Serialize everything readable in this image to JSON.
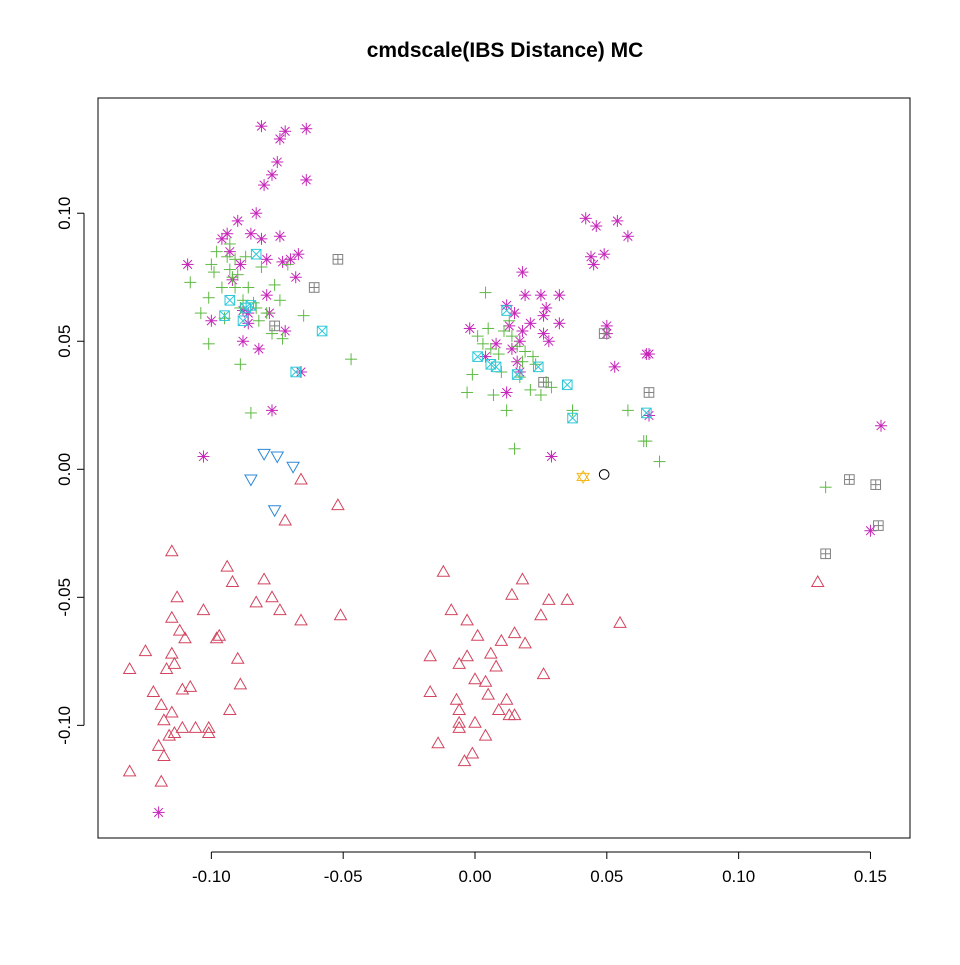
{
  "chart_data": {
    "type": "scatter",
    "title": "cmdscale(IBS Distance) MC",
    "xlabel": "",
    "ylabel": "",
    "xlim": [
      -0.143,
      0.165
    ],
    "ylim": [
      -0.144,
      0.145
    ],
    "xticks": [
      -0.1,
      -0.05,
      0.0,
      0.05,
      0.1,
      0.15
    ],
    "xtick_labels": [
      "-0.10",
      "-0.05",
      "0.00",
      "0.05",
      "0.10",
      "0.15"
    ],
    "yticks": [
      -0.1,
      -0.05,
      0.0,
      0.05,
      0.1
    ],
    "ytick_labels": [
      "-0.10",
      "-0.05",
      "0.00",
      "0.05",
      "0.10"
    ],
    "grid": false,
    "series": [
      {
        "marker": "triangle-up",
        "color": "#d2445f",
        "points": [
          [
            -0.131,
            -0.078
          ],
          [
            -0.131,
            -0.118
          ],
          [
            -0.125,
            -0.071
          ],
          [
            -0.122,
            -0.087
          ],
          [
            -0.12,
            -0.108
          ],
          [
            -0.119,
            -0.122
          ],
          [
            -0.119,
            -0.092
          ],
          [
            -0.118,
            -0.098
          ],
          [
            -0.118,
            -0.112
          ],
          [
            -0.117,
            -0.078
          ],
          [
            -0.116,
            -0.104
          ],
          [
            -0.115,
            -0.058
          ],
          [
            -0.115,
            -0.072
          ],
          [
            -0.115,
            -0.095
          ],
          [
            -0.115,
            -0.032
          ],
          [
            -0.114,
            -0.103
          ],
          [
            -0.114,
            -0.076
          ],
          [
            -0.113,
            -0.05
          ],
          [
            -0.112,
            -0.063
          ],
          [
            -0.111,
            -0.101
          ],
          [
            -0.111,
            -0.086
          ],
          [
            -0.11,
            -0.066
          ],
          [
            -0.108,
            -0.085
          ],
          [
            -0.106,
            -0.101
          ],
          [
            -0.103,
            -0.055
          ],
          [
            -0.101,
            -0.103
          ],
          [
            -0.101,
            -0.101
          ],
          [
            -0.098,
            -0.066
          ],
          [
            -0.097,
            -0.065
          ],
          [
            -0.094,
            -0.038
          ],
          [
            -0.093,
            -0.094
          ],
          [
            -0.092,
            -0.044
          ],
          [
            -0.09,
            -0.074
          ],
          [
            -0.089,
            -0.084
          ],
          [
            -0.083,
            -0.052
          ],
          [
            -0.08,
            -0.043
          ],
          [
            -0.077,
            -0.05
          ],
          [
            -0.074,
            -0.055
          ],
          [
            -0.072,
            -0.02
          ],
          [
            -0.066,
            -0.059
          ],
          [
            -0.066,
            -0.004
          ],
          [
            -0.052,
            -0.014
          ],
          [
            -0.051,
            -0.057
          ],
          [
            -0.017,
            -0.073
          ],
          [
            -0.017,
            -0.087
          ],
          [
            -0.014,
            -0.107
          ],
          [
            -0.012,
            -0.04
          ],
          [
            -0.009,
            -0.055
          ],
          [
            -0.007,
            -0.09
          ],
          [
            -0.006,
            -0.094
          ],
          [
            -0.006,
            -0.101
          ],
          [
            -0.006,
            -0.099
          ],
          [
            -0.006,
            -0.076
          ],
          [
            -0.004,
            -0.114
          ],
          [
            -0.003,
            -0.073
          ],
          [
            -0.003,
            -0.059
          ],
          [
            -0.001,
            -0.111
          ],
          [
            0.0,
            -0.099
          ],
          [
            0.0,
            -0.082
          ],
          [
            0.001,
            -0.065
          ],
          [
            0.004,
            -0.083
          ],
          [
            0.004,
            -0.104
          ],
          [
            0.005,
            -0.088
          ],
          [
            0.006,
            -0.072
          ],
          [
            0.008,
            -0.077
          ],
          [
            0.009,
            -0.094
          ],
          [
            0.01,
            -0.067
          ],
          [
            0.012,
            -0.09
          ],
          [
            0.013,
            -0.096
          ],
          [
            0.014,
            -0.049
          ],
          [
            0.015,
            -0.096
          ],
          [
            0.015,
            -0.064
          ],
          [
            0.018,
            -0.043
          ],
          [
            0.019,
            -0.068
          ],
          [
            0.025,
            -0.057
          ],
          [
            0.026,
            -0.08
          ],
          [
            0.028,
            -0.051
          ],
          [
            0.035,
            -0.051
          ],
          [
            0.055,
            -0.06
          ],
          [
            0.13,
            -0.044
          ]
        ]
      },
      {
        "marker": "asterisk",
        "color": "#c525b8",
        "points": [
          [
            -0.12,
            -0.134
          ],
          [
            -0.109,
            0.08
          ],
          [
            -0.103,
            0.005
          ],
          [
            -0.1,
            0.058
          ],
          [
            -0.096,
            0.09
          ],
          [
            -0.094,
            0.092
          ],
          [
            -0.093,
            0.085
          ],
          [
            -0.092,
            0.074
          ],
          [
            -0.09,
            0.097
          ],
          [
            -0.089,
            0.08
          ],
          [
            -0.088,
            0.05
          ],
          [
            -0.088,
            0.062
          ],
          [
            -0.086,
            0.061
          ],
          [
            -0.086,
            0.057
          ],
          [
            -0.085,
            0.092
          ],
          [
            -0.083,
            0.1
          ],
          [
            -0.082,
            0.047
          ],
          [
            -0.081,
            0.134
          ],
          [
            -0.081,
            0.09
          ],
          [
            -0.08,
            0.111
          ],
          [
            -0.079,
            0.082
          ],
          [
            -0.079,
            0.068
          ],
          [
            -0.078,
            0.061
          ],
          [
            -0.077,
            0.115
          ],
          [
            -0.077,
            0.023
          ],
          [
            -0.075,
            0.12
          ],
          [
            -0.074,
            0.091
          ],
          [
            -0.074,
            0.129
          ],
          [
            -0.073,
            0.081
          ],
          [
            -0.072,
            0.132
          ],
          [
            -0.072,
            0.054
          ],
          [
            -0.07,
            0.082
          ],
          [
            -0.068,
            0.075
          ],
          [
            -0.067,
            0.084
          ],
          [
            -0.066,
            0.038
          ],
          [
            -0.064,
            0.113
          ],
          [
            -0.064,
            0.133
          ],
          [
            -0.002,
            0.055
          ],
          [
            0.004,
            0.044
          ],
          [
            0.008,
            0.049
          ],
          [
            0.012,
            0.064
          ],
          [
            0.012,
            0.03
          ],
          [
            0.013,
            0.056
          ],
          [
            0.014,
            0.047
          ],
          [
            0.015,
            0.061
          ],
          [
            0.016,
            0.042
          ],
          [
            0.017,
            0.038
          ],
          [
            0.017,
            0.05
          ],
          [
            0.018,
            0.054
          ],
          [
            0.018,
            0.077
          ],
          [
            0.019,
            0.068
          ],
          [
            0.021,
            0.057
          ],
          [
            0.025,
            0.068
          ],
          [
            0.026,
            0.06
          ],
          [
            0.026,
            0.053
          ],
          [
            0.027,
            0.063
          ],
          [
            0.028,
            0.05
          ],
          [
            0.029,
            0.005
          ],
          [
            0.032,
            0.068
          ],
          [
            0.032,
            0.057
          ],
          [
            0.042,
            0.098
          ],
          [
            0.044,
            0.083
          ],
          [
            0.045,
            0.08
          ],
          [
            0.046,
            0.095
          ],
          [
            0.049,
            0.084
          ],
          [
            0.05,
            0.053
          ],
          [
            0.05,
            0.056
          ],
          [
            0.053,
            0.04
          ],
          [
            0.054,
            0.097
          ],
          [
            0.058,
            0.091
          ],
          [
            0.065,
            0.045
          ],
          [
            0.066,
            0.045
          ],
          [
            0.066,
            0.021
          ],
          [
            0.15,
            -0.024
          ],
          [
            0.154,
            0.017
          ]
        ]
      },
      {
        "marker": "plus",
        "color": "#5eb944",
        "points": [
          [
            -0.108,
            0.073
          ],
          [
            -0.104,
            0.061
          ],
          [
            -0.101,
            0.067
          ],
          [
            -0.101,
            0.049
          ],
          [
            -0.1,
            0.08
          ],
          [
            -0.099,
            0.077
          ],
          [
            -0.098,
            0.085
          ],
          [
            -0.096,
            0.071
          ],
          [
            -0.095,
            0.059
          ],
          [
            -0.094,
            0.083
          ],
          [
            -0.093,
            0.088
          ],
          [
            -0.093,
            0.078
          ],
          [
            -0.092,
            0.075
          ],
          [
            -0.091,
            0.082
          ],
          [
            -0.091,
            0.071
          ],
          [
            -0.09,
            0.076
          ],
          [
            -0.089,
            0.063
          ],
          [
            -0.089,
            0.041
          ],
          [
            -0.088,
            0.066
          ],
          [
            -0.087,
            0.083
          ],
          [
            -0.086,
            0.071
          ],
          [
            -0.085,
            0.022
          ],
          [
            -0.084,
            0.065
          ],
          [
            -0.083,
            0.063
          ],
          [
            -0.082,
            0.058
          ],
          [
            -0.081,
            0.079
          ],
          [
            -0.079,
            0.061
          ],
          [
            -0.077,
            0.053
          ],
          [
            -0.076,
            0.072
          ],
          [
            -0.074,
            0.066
          ],
          [
            -0.073,
            0.051
          ],
          [
            -0.071,
            0.08
          ],
          [
            -0.065,
            0.06
          ],
          [
            -0.047,
            0.043
          ],
          [
            -0.003,
            0.03
          ],
          [
            -0.001,
            0.037
          ],
          [
            0.001,
            0.052
          ],
          [
            0.003,
            0.049
          ],
          [
            0.004,
            0.069
          ],
          [
            0.005,
            0.055
          ],
          [
            0.006,
            0.047
          ],
          [
            0.007,
            0.029
          ],
          [
            0.009,
            0.045
          ],
          [
            0.01,
            0.038
          ],
          [
            0.011,
            0.054
          ],
          [
            0.012,
            0.023
          ],
          [
            0.013,
            0.058
          ],
          [
            0.014,
            0.052
          ],
          [
            0.015,
            0.008
          ],
          [
            0.016,
            0.048
          ],
          [
            0.017,
            0.036
          ],
          [
            0.018,
            0.042
          ],
          [
            0.019,
            0.046
          ],
          [
            0.021,
            0.031
          ],
          [
            0.022,
            0.044
          ],
          [
            0.023,
            0.041
          ],
          [
            0.025,
            0.029
          ],
          [
            0.027,
            0.034
          ],
          [
            0.029,
            0.032
          ],
          [
            0.037,
            0.023
          ],
          [
            0.058,
            0.023
          ],
          [
            0.064,
            0.011
          ],
          [
            0.065,
            0.011
          ],
          [
            0.07,
            0.003
          ],
          [
            0.133,
            -0.007
          ]
        ]
      },
      {
        "marker": "square-cross",
        "color": "#2cc8d8",
        "points": [
          [
            -0.095,
            0.06
          ],
          [
            -0.093,
            0.066
          ],
          [
            -0.088,
            0.058
          ],
          [
            -0.087,
            0.063
          ],
          [
            -0.085,
            0.064
          ],
          [
            -0.083,
            0.084
          ],
          [
            -0.068,
            0.038
          ],
          [
            -0.058,
            0.054
          ],
          [
            0.001,
            0.044
          ],
          [
            0.006,
            0.041
          ],
          [
            0.008,
            0.04
          ],
          [
            0.012,
            0.062
          ],
          [
            0.016,
            0.037
          ],
          [
            0.024,
            0.04
          ],
          [
            0.035,
            0.033
          ],
          [
            0.037,
            0.02
          ],
          [
            0.065,
            0.022
          ]
        ]
      },
      {
        "marker": "square-plus",
        "color": "#808080",
        "points": [
          [
            -0.076,
            0.056
          ],
          [
            -0.061,
            0.071
          ],
          [
            -0.052,
            0.082
          ],
          [
            0.026,
            0.034
          ],
          [
            0.049,
            0.053
          ],
          [
            0.066,
            0.03
          ],
          [
            0.133,
            -0.033
          ],
          [
            0.142,
            -0.004
          ],
          [
            0.152,
            -0.006
          ],
          [
            0.153,
            -0.022
          ]
        ]
      },
      {
        "marker": "triangle-down",
        "color": "#2a88d8",
        "points": [
          [
            -0.085,
            -0.004
          ],
          [
            -0.08,
            0.006
          ],
          [
            -0.076,
            -0.016
          ],
          [
            -0.075,
            0.005
          ],
          [
            -0.069,
            0.001
          ]
        ]
      },
      {
        "marker": "star-of-david",
        "color": "#f2b81c",
        "points": [
          [
            0.041,
            -0.003
          ]
        ]
      },
      {
        "marker": "circle",
        "color": "#000000",
        "points": [
          [
            0.049,
            -0.002
          ]
        ]
      }
    ]
  }
}
